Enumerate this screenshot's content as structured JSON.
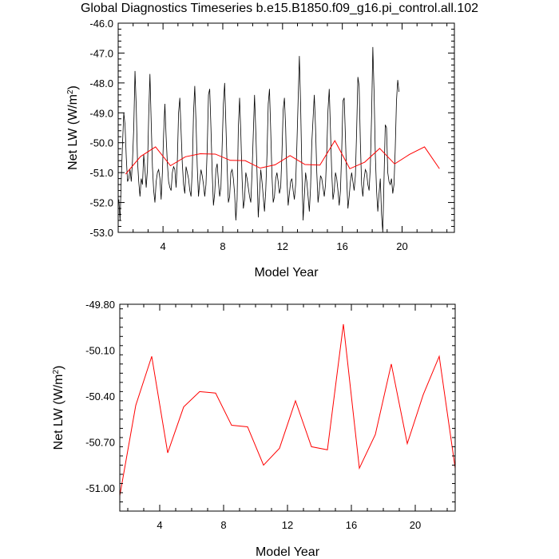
{
  "title": "Global Diagnostics Timeseries b.e15.B1850.f09_g16.pi_control.all.102",
  "colors": {
    "monthly": "#000000",
    "annual": "#ff0000",
    "frame": "#000000"
  },
  "chart_data": [
    {
      "type": "line",
      "id": "top",
      "xlabel": "Model Year",
      "ylabel_main": "Net LW (W/m",
      "ylabel_sup": "2",
      "ylabel_end": ")",
      "xlim": [
        1,
        23.5
      ],
      "ylim": [
        -53.0,
        -46.0
      ],
      "xticks": [
        4,
        8,
        12,
        16,
        20
      ],
      "xtick_labels": [
        "4",
        "8",
        "12",
        "16",
        "20"
      ],
      "yticks": [
        -53,
        -52,
        -51,
        -50,
        -49,
        -48,
        -47,
        -46
      ],
      "ytick_labels": [
        "-53.0",
        "-52.0",
        "-51.0",
        "-50.0",
        "-49.0",
        "-48.0",
        "-47.0",
        "-46.0"
      ],
      "series": [
        {
          "name": "monthly",
          "color": "#000000",
          "x_start": 1.0417,
          "x_step": 0.083333,
          "values": [
            -51.9,
            -52.6,
            -51.2,
            -50.0,
            -49.0,
            -49.4,
            -50.5,
            -51.3,
            -51.2,
            -50.9,
            -51.3,
            -50.6,
            -49.5,
            -47.6,
            -48.8,
            -50.6,
            -51.3,
            -51.8,
            -51.2,
            -51.4,
            -50.4,
            -50.9,
            -51.5,
            -50.9,
            -49.1,
            -47.7,
            -49.3,
            -50.8,
            -51.6,
            -52.0,
            -51.3,
            -51.0,
            -50.9,
            -51.2,
            -51.9,
            -51.0,
            -49.7,
            -48.7,
            -49.8,
            -50.7,
            -51.3,
            -51.5,
            -51.6,
            -51.0,
            -50.8,
            -50.9,
            -51.5,
            -50.6,
            -49.0,
            -48.5,
            -49.6,
            -50.7,
            -51.4,
            -51.7,
            -50.8,
            -51.0,
            -51.2,
            -51.6,
            -51.8,
            -50.9,
            -49.0,
            -48.1,
            -49.3,
            -50.8,
            -51.8,
            -51.3,
            -50.9,
            -51.1,
            -51.4,
            -51.8,
            -51.4,
            -50.2,
            -48.4,
            -48.2,
            -49.5,
            -51.0,
            -52.1,
            -51.7,
            -50.9,
            -50.7,
            -51.3,
            -51.8,
            -51.5,
            -50.1,
            -48.7,
            -48.0,
            -49.4,
            -50.8,
            -52.0,
            -51.8,
            -51.0,
            -50.9,
            -51.2,
            -51.7,
            -52.6,
            -51.9,
            -49.5,
            -48.5,
            -49.7,
            -51.2,
            -52.2,
            -51.9,
            -51.0,
            -51.2,
            -51.5,
            -51.8,
            -52.0,
            -51.0,
            -49.7,
            -48.4,
            -49.6,
            -51.0,
            -52.5,
            -51.7,
            -50.9,
            -51.3,
            -51.8,
            -52.3,
            -51.6,
            -50.4,
            -48.7,
            -48.2,
            -49.6,
            -51.1,
            -52.0,
            -51.8,
            -51.2,
            -51.0,
            -51.3,
            -51.7,
            -51.5,
            -50.4,
            -48.9,
            -48.5,
            -49.5,
            -51.2,
            -52.1,
            -51.7,
            -51.3,
            -51.2,
            -51.6,
            -51.9,
            -51.4,
            -50.1,
            -48.6,
            -47.1,
            -48.7,
            -50.9,
            -52.6,
            -51.8,
            -51.0,
            -51.3,
            -51.8,
            -52.3,
            -51.5,
            -50.0,
            -49.2,
            -48.4,
            -49.5,
            -51.0,
            -52.0,
            -51.6,
            -51.1,
            -51.2,
            -51.5,
            -51.8,
            -51.4,
            -50.3,
            -48.9,
            -48.2,
            -49.6,
            -51.0,
            -51.9,
            -51.6,
            -51.0,
            -51.2,
            -51.6,
            -52.1,
            -51.6,
            -50.3,
            -48.6,
            -48.5,
            -49.8,
            -51.2,
            -52.2,
            -51.8,
            -51.3,
            -51.0,
            -51.3,
            -51.6,
            -51.1,
            -49.6,
            -47.8,
            -48.1,
            -50.0,
            -51.4,
            -51.8,
            -51.2,
            -50.9,
            -51.0,
            -51.4,
            -51.6,
            -50.8,
            -49.1,
            -46.8,
            -48.3,
            -50.4,
            -51.6,
            -52.3,
            -51.7,
            -51.2,
            -52.4,
            -53.0,
            -51.2,
            -49.4,
            -49.5,
            -51.0,
            -51.3,
            -51.4,
            -51.2,
            -51.7,
            -51.4,
            -50.2,
            -48.6,
            -47.9,
            -48.3
          ]
        },
        {
          "name": "annual",
          "color": "#ff0000",
          "x": [
            1.5,
            2.5,
            3.5,
            4.5,
            5.5,
            6.5,
            7.5,
            8.5,
            9.5,
            10.5,
            11.5,
            12.5,
            13.5,
            14.5,
            15.5,
            16.5,
            17.5,
            18.5,
            19.5,
            20.5,
            21.5,
            22.5
          ],
          "values": [
            -51.05,
            -50.46,
            -50.14,
            -50.77,
            -50.47,
            -50.37,
            -50.38,
            -50.59,
            -50.6,
            -50.85,
            -50.74,
            -50.43,
            -50.73,
            -50.75,
            -49.93,
            -50.87,
            -50.65,
            -50.19,
            -50.71,
            -50.39,
            -50.14,
            -50.87
          ]
        }
      ]
    },
    {
      "type": "line",
      "id": "bottom",
      "xlabel": "Model Year",
      "ylabel_main": "Net LW (W/m",
      "ylabel_sup": "2",
      "ylabel_end": ")",
      "xlim": [
        1.5,
        22.5
      ],
      "ylim": [
        -51.15,
        -49.8
      ],
      "xticks": [
        4,
        8,
        12,
        16,
        20
      ],
      "xtick_labels": [
        "4",
        "8",
        "12",
        "16",
        "20"
      ],
      "yticks": [
        -51.0,
        -50.7,
        -50.4,
        -50.1,
        -49.8
      ],
      "ytick_labels": [
        "-51.00",
        "-50.70",
        "-50.40",
        "-50.10",
        "-49.80"
      ],
      "series": [
        {
          "name": "annual",
          "color": "#ff0000",
          "x": [
            1.5,
            2.5,
            3.5,
            4.5,
            5.5,
            6.5,
            7.5,
            8.5,
            9.5,
            10.5,
            11.5,
            12.5,
            13.5,
            14.5,
            15.5,
            16.5,
            17.5,
            18.5,
            19.5,
            20.5,
            21.5,
            22.5
          ],
          "values": [
            -51.05,
            -50.46,
            -50.14,
            -50.77,
            -50.47,
            -50.37,
            -50.38,
            -50.59,
            -50.6,
            -50.85,
            -50.74,
            -50.43,
            -50.73,
            -50.75,
            -49.93,
            -50.87,
            -50.65,
            -50.19,
            -50.71,
            -50.39,
            -50.14,
            -50.87
          ]
        }
      ]
    }
  ]
}
